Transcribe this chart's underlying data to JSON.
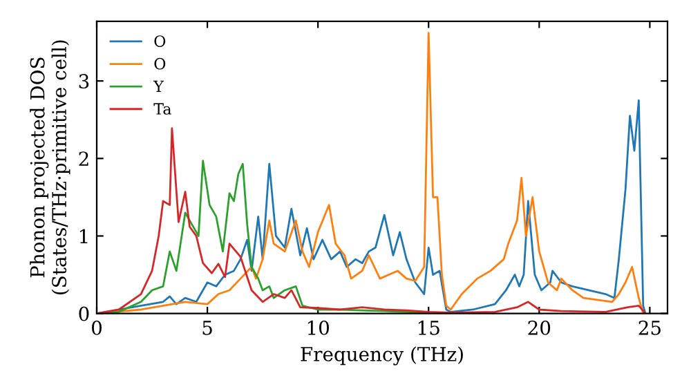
{
  "chart_data": {
    "type": "line",
    "xlabel": "Frequency (THz)",
    "ylabel": "Phonon projected DOS\n(States/THz·primitive cell)",
    "xlim": [
      0,
      25.8
    ],
    "ylim": [
      0,
      3.77
    ],
    "xticks": [
      0,
      5,
      10,
      15,
      20,
      25
    ],
    "yticks": [
      0,
      1,
      2,
      3
    ],
    "grid": false,
    "legend": "top left",
    "marker": "none",
    "line_style": "solid",
    "series": [
      {
        "name": "O",
        "color": "#1f77b4",
        "x": [
          0,
          2,
          3,
          3.3,
          3.6,
          4,
          4.5,
          5,
          5.4,
          5.8,
          6.2,
          6.5,
          6.8,
          7.0,
          7.3,
          7.5,
          7.8,
          8.1,
          8.5,
          8.8,
          9.2,
          9.5,
          9.8,
          10.2,
          10.6,
          11,
          11.3,
          11.7,
          12,
          12.3,
          12.6,
          13,
          13.4,
          13.7,
          14,
          14.4,
          14.8,
          15,
          15.2,
          15.5,
          15.8,
          16,
          17,
          18,
          18.5,
          18.9,
          19.1,
          19.3,
          19.5,
          19.8,
          20.1,
          20.5,
          20.6,
          21,
          21.5,
          23,
          23.4,
          23.6,
          23.9,
          24.1,
          24.3,
          24.5,
          24.7,
          24.8
        ],
        "values": [
          0,
          0.1,
          0.15,
          0.22,
          0.12,
          0.2,
          0.15,
          0.4,
          0.35,
          0.5,
          0.55,
          0.7,
          0.95,
          0.55,
          1.25,
          0.7,
          1.93,
          1.0,
          0.85,
          1.35,
          0.75,
          1.1,
          0.7,
          0.95,
          0.7,
          0.8,
          0.6,
          0.7,
          0.65,
          0.8,
          0.85,
          1.27,
          0.75,
          1.05,
          0.7,
          0.4,
          0.25,
          0.85,
          0.5,
          0.55,
          0.05,
          0.02,
          0.05,
          0.12,
          0.3,
          0.5,
          0.35,
          0.5,
          1.45,
          0.5,
          0.3,
          0.4,
          0.55,
          0.4,
          0.35,
          0.25,
          0.2,
          0.7,
          1.6,
          2.55,
          2.1,
          2.75,
          0.1,
          0
        ]
      },
      {
        "name": "O",
        "color": "#ff7f0e",
        "x": [
          0,
          2,
          3,
          4,
          5,
          5.5,
          6,
          6.5,
          7,
          7.2,
          7.5,
          7.8,
          8.0,
          8.5,
          9.0,
          9.3,
          9.6,
          10,
          10.5,
          10.8,
          11.2,
          11.5,
          12,
          12.3,
          12.8,
          13.2,
          13.6,
          14,
          14.4,
          14.8,
          15.0,
          15.2,
          15.4,
          15.6,
          15.8,
          16,
          16.5,
          17.2,
          17.8,
          18.4,
          18.6,
          19.0,
          19.2,
          19.4,
          19.7,
          20.0,
          20.4,
          20.8,
          21,
          21.5,
          22,
          23.3,
          23.6,
          23.9,
          24.2,
          24.5,
          24.7
        ],
        "values": [
          0,
          0.05,
          0.1,
          0.15,
          0.12,
          0.25,
          0.3,
          0.45,
          0.6,
          0.45,
          0.7,
          1.2,
          0.9,
          0.8,
          1.2,
          0.8,
          0.6,
          1.05,
          1.4,
          0.9,
          0.75,
          0.45,
          0.55,
          0.75,
          0.45,
          0.5,
          0.55,
          0.45,
          0.42,
          0.6,
          3.62,
          1.5,
          1.5,
          0.5,
          0.1,
          0.05,
          0.25,
          0.45,
          0.55,
          0.7,
          0.9,
          1.2,
          1.75,
          1.0,
          1.5,
          0.8,
          0.4,
          0.3,
          0.45,
          0.3,
          0.2,
          0.15,
          0.25,
          0.4,
          0.6,
          0.2,
          0
        ]
      },
      {
        "name": "Y",
        "color": "#2ca02c",
        "x": [
          0,
          1,
          2,
          2.5,
          3,
          3.3,
          3.6,
          4.0,
          4.3,
          4.6,
          4.8,
          5.1,
          5.4,
          5.7,
          6.0,
          6.2,
          6.4,
          6.6,
          6.8,
          7.0,
          7.3,
          7.5,
          7.8,
          8.0,
          8.5,
          9.0,
          9.3,
          10,
          11,
          12,
          13,
          14,
          15
        ],
        "values": [
          0,
          0.02,
          0.15,
          0.3,
          0.35,
          0.8,
          0.55,
          1.3,
          1.15,
          1.0,
          1.97,
          1.4,
          1.25,
          0.8,
          1.55,
          1.45,
          1.8,
          1.93,
          1.15,
          0.6,
          0.45,
          0.3,
          0.35,
          0.2,
          0.3,
          0.35,
          0.1,
          0.05,
          0.05,
          0.04,
          0.03,
          0.02,
          0.01
        ]
      },
      {
        "name": "Ta",
        "color": "#d62728",
        "x": [
          0,
          1,
          2,
          2.5,
          2.8,
          3,
          3.3,
          3.4,
          3.7,
          4,
          4.2,
          4.5,
          4.8,
          5.2,
          5.5,
          5.8,
          6.0,
          6.5,
          7.0,
          7.5,
          8,
          8.5,
          8.8,
          9.2,
          10,
          11,
          12,
          13,
          14,
          15,
          16,
          18,
          19,
          19.5,
          20,
          21,
          23,
          24,
          24.5,
          24.8
        ],
        "values": [
          0,
          0.05,
          0.25,
          0.55,
          1.0,
          1.45,
          1.4,
          2.39,
          1.18,
          1.57,
          1.12,
          1.0,
          0.65,
          0.52,
          0.64,
          0.47,
          0.9,
          0.73,
          0.3,
          0.15,
          0.25,
          0.2,
          0.3,
          0.08,
          0.07,
          0.05,
          0.08,
          0.05,
          0.04,
          0.02,
          0.01,
          0.02,
          0.08,
          0.15,
          0.05,
          0.03,
          0.02,
          0.08,
          0.1,
          0
        ]
      }
    ]
  }
}
